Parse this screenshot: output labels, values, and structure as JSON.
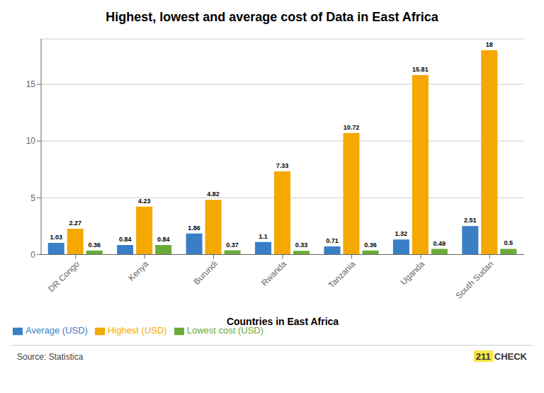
{
  "chart_data": {
    "type": "bar",
    "title": "Highest, lowest and average cost of Data in East Africa",
    "x_label": "Countries in East Africa",
    "categories": [
      "DR Congo",
      "Kenya",
      "Burundi",
      "Rwanda",
      "Tanzania",
      "Uganda",
      "South Sudan"
    ],
    "series": [
      {
        "name": "Average (USD)",
        "color": "#3A7EC6",
        "values": [
          1.03,
          0.84,
          1.86,
          1.1,
          0.71,
          1.32,
          2.51
        ]
      },
      {
        "name": "Highest (USD)",
        "color": "#F5A800",
        "values": [
          2.27,
          4.23,
          4.82,
          7.33,
          10.72,
          15.81,
          18
        ]
      },
      {
        "name": "Lowest cost (USD)",
        "color": "#6AAB3A",
        "values": [
          0.36,
          0.84,
          0.37,
          0.33,
          0.36,
          0.49,
          0.5
        ]
      }
    ],
    "ylim": [
      0,
      19
    ],
    "yticks": [
      0,
      5,
      10,
      15
    ],
    "grid": true,
    "data_labels": true,
    "legend": "lower left",
    "annotations": [
      "Source: Statistica",
      "211",
      "CHECK"
    ]
  }
}
